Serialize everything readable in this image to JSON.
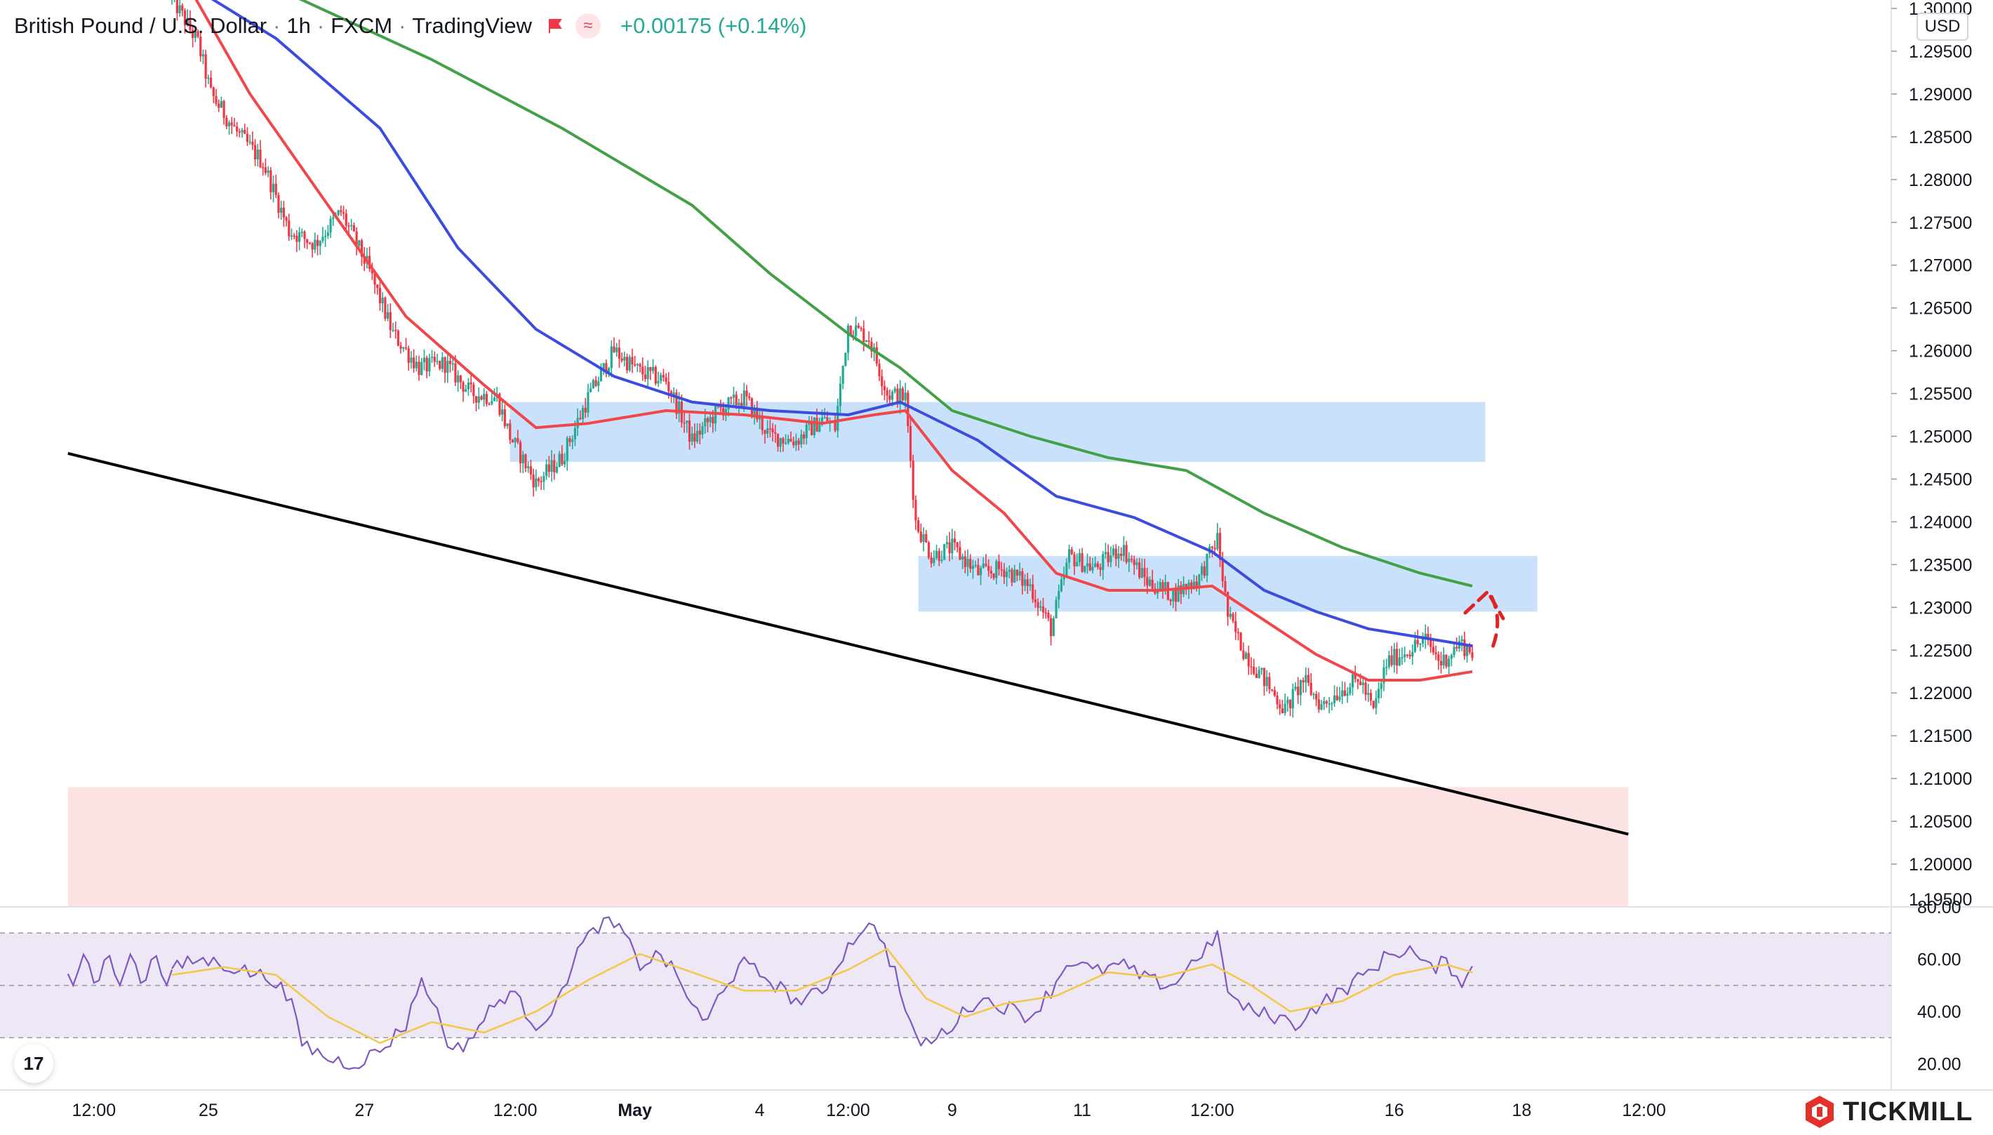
{
  "header": {
    "symbol": "British Pound / U.S. Dollar",
    "interval": "1h",
    "exchange": "FXCM",
    "source": "TradingView",
    "change": "+0.00175 (+0.14%)",
    "currency": "USD"
  },
  "brand": {
    "name": "TICKMILL"
  },
  "tv_logo": "17",
  "colors": {
    "bull": "#22ab94",
    "bear": "#f23645",
    "ema_fast": "#f0474b",
    "ema_mid": "#3c4cde",
    "ema_slow": "#43a047",
    "zone": "#c9e1fb",
    "demand": "#fde2e4",
    "rsi_line": "#7e57c2",
    "rsi_ma": "#f2c94c",
    "trendline": "#000000",
    "arrow": "#e02424"
  },
  "chart_data": [
    {
      "type": "candlestick",
      "title": "British Pound / U.S. Dollar",
      "ylim": [
        1.195,
        1.3
      ],
      "yticks": [
        "1.30000",
        "1.29500",
        "1.29000",
        "1.28500",
        "1.28000",
        "1.27500",
        "1.27000",
        "1.26500",
        "1.26000",
        "1.25500",
        "1.25000",
        "1.24500",
        "1.24000",
        "1.23500",
        "1.23000",
        "1.22500",
        "1.22000",
        "1.21500",
        "1.21000",
        "1.20500",
        "1.20000",
        "1.19500"
      ],
      "xticks": [
        "12:00",
        "25",
        "27",
        "12:00",
        "May",
        "4",
        "12:00",
        "9",
        "11",
        "12:00",
        "16",
        "18",
        "12:00"
      ],
      "xtick_bold": [
        "May"
      ],
      "anchors": [
        {
          "i": 0,
          "p": 1.3012
        },
        {
          "i": 10,
          "p": 1.296
        },
        {
          "i": 15,
          "p": 1.29
        },
        {
          "i": 25,
          "p": 1.2855
        },
        {
          "i": 35,
          "p": 1.282
        },
        {
          "i": 45,
          "p": 1.274
        },
        {
          "i": 55,
          "p": 1.2725
        },
        {
          "i": 65,
          "p": 1.2762
        },
        {
          "i": 75,
          "p": 1.27
        },
        {
          "i": 85,
          "p": 1.262
        },
        {
          "i": 95,
          "p": 1.258
        },
        {
          "i": 105,
          "p": 1.2585
        },
        {
          "i": 115,
          "p": 1.255
        },
        {
          "i": 125,
          "p": 1.2545
        },
        {
          "i": 130,
          "p": 1.25
        },
        {
          "i": 140,
          "p": 1.2445
        },
        {
          "i": 150,
          "p": 1.2475
        },
        {
          "i": 160,
          "p": 1.2545
        },
        {
          "i": 170,
          "p": 1.26
        },
        {
          "i": 180,
          "p": 1.2575
        },
        {
          "i": 190,
          "p": 1.2565
        },
        {
          "i": 200,
          "p": 1.2495
        },
        {
          "i": 210,
          "p": 1.253
        },
        {
          "i": 220,
          "p": 1.2545
        },
        {
          "i": 230,
          "p": 1.25
        },
        {
          "i": 240,
          "p": 1.2495
        },
        {
          "i": 250,
          "p": 1.252
        },
        {
          "i": 255,
          "p": 1.251
        },
        {
          "i": 260,
          "p": 1.263
        },
        {
          "i": 268,
          "p": 1.2615
        },
        {
          "i": 275,
          "p": 1.255
        },
        {
          "i": 282,
          "p": 1.2545
        },
        {
          "i": 286,
          "p": 1.24
        },
        {
          "i": 292,
          "p": 1.236
        },
        {
          "i": 300,
          "p": 1.237
        },
        {
          "i": 310,
          "p": 1.234
        },
        {
          "i": 320,
          "p": 1.2345
        },
        {
          "i": 330,
          "p": 1.2325
        },
        {
          "i": 338,
          "p": 1.2275
        },
        {
          "i": 345,
          "p": 1.236
        },
        {
          "i": 355,
          "p": 1.2345
        },
        {
          "i": 365,
          "p": 1.237
        },
        {
          "i": 375,
          "p": 1.233
        },
        {
          "i": 385,
          "p": 1.2315
        },
        {
          "i": 395,
          "p": 1.2335
        },
        {
          "i": 402,
          "p": 1.238
        },
        {
          "i": 406,
          "p": 1.229
        },
        {
          "i": 412,
          "p": 1.225
        },
        {
          "i": 420,
          "p": 1.2215
        },
        {
          "i": 428,
          "p": 1.218
        },
        {
          "i": 435,
          "p": 1.2215
        },
        {
          "i": 442,
          "p": 1.2185
        },
        {
          "i": 450,
          "p": 1.2205
        },
        {
          "i": 457,
          "p": 1.2215
        },
        {
          "i": 462,
          "p": 1.2178
        },
        {
          "i": 467,
          "p": 1.2235
        },
        {
          "i": 475,
          "p": 1.225
        },
        {
          "i": 482,
          "p": 1.2262
        },
        {
          "i": 488,
          "p": 1.2235
        },
        {
          "i": 495,
          "p": 1.2258
        },
        {
          "i": 500,
          "p": 1.2248
        }
      ],
      "ema_fast": [
        [
          0,
          1.306
        ],
        [
          30,
          1.29
        ],
        [
          60,
          1.277
        ],
        [
          90,
          1.264
        ],
        [
          120,
          1.256
        ],
        [
          140,
          1.251
        ],
        [
          160,
          1.2515
        ],
        [
          190,
          1.253
        ],
        [
          220,
          1.2525
        ],
        [
          250,
          1.2515
        ],
        [
          270,
          1.2525
        ],
        [
          282,
          1.253
        ],
        [
          300,
          1.246
        ],
        [
          320,
          1.241
        ],
        [
          340,
          1.234
        ],
        [
          360,
          1.232
        ],
        [
          380,
          1.232
        ],
        [
          400,
          1.2325
        ],
        [
          420,
          1.2285
        ],
        [
          440,
          1.2245
        ],
        [
          460,
          1.2215
        ],
        [
          480,
          1.2215
        ],
        [
          500,
          1.2225
        ]
      ],
      "ema_mid": [
        [
          0,
          1.304
        ],
        [
          40,
          1.2965
        ],
        [
          80,
          1.286
        ],
        [
          110,
          1.272
        ],
        [
          140,
          1.2625
        ],
        [
          170,
          1.257
        ],
        [
          200,
          1.254
        ],
        [
          230,
          1.253
        ],
        [
          260,
          1.2525
        ],
        [
          280,
          1.254
        ],
        [
          290,
          1.2525
        ],
        [
          310,
          1.2495
        ],
        [
          340,
          1.243
        ],
        [
          370,
          1.2405
        ],
        [
          400,
          1.2365
        ],
        [
          420,
          1.232
        ],
        [
          440,
          1.2295
        ],
        [
          460,
          1.2275
        ],
        [
          480,
          1.2265
        ],
        [
          500,
          1.2255
        ]
      ],
      "ema_slow": [
        [
          0,
          1.3075
        ],
        [
          50,
          1.301
        ],
        [
          100,
          1.294
        ],
        [
          150,
          1.286
        ],
        [
          200,
          1.277
        ],
        [
          230,
          1.269
        ],
        [
          260,
          1.262
        ],
        [
          280,
          1.258
        ],
        [
          300,
          1.253
        ],
        [
          330,
          1.25
        ],
        [
          360,
          1.2475
        ],
        [
          390,
          1.246
        ],
        [
          420,
          1.241
        ],
        [
          450,
          1.237
        ],
        [
          480,
          1.234
        ],
        [
          500,
          1.2325
        ]
      ],
      "zones": [
        {
          "i0": 130,
          "i1": 505,
          "top": 1.254,
          "bottom": 1.247,
          "kind": "supply"
        },
        {
          "i0": 287,
          "i1": 525,
          "top": 1.236,
          "bottom": 1.2295,
          "kind": "supply"
        },
        {
          "i0": -40,
          "i1": 560,
          "top": 1.209,
          "bottom": 1.195,
          "kind": "demand"
        }
      ],
      "trendline": [
        [
          -40,
          1.248
        ],
        [
          560,
          1.2035
        ]
      ]
    },
    {
      "type": "line",
      "title": "RSI",
      "ylim": [
        10,
        80
      ],
      "yticks": [
        "80.00",
        "60.00",
        "40.00",
        "20.00"
      ],
      "levels": [
        70,
        50,
        30
      ],
      "series": [
        {
          "role": "rsi",
          "anchors": [
            [
              0,
              56
            ],
            [
              10,
              60
            ],
            [
              20,
              58
            ],
            [
              30,
              55
            ],
            [
              40,
              52
            ],
            [
              46,
              42
            ],
            [
              50,
              28
            ],
            [
              60,
              22
            ],
            [
              70,
              20
            ],
            [
              80,
              25
            ],
            [
              90,
              35
            ],
            [
              95,
              52
            ],
            [
              100,
              45
            ],
            [
              108,
              24
            ],
            [
              115,
              30
            ],
            [
              122,
              40
            ],
            [
              130,
              48
            ],
            [
              140,
              35
            ],
            [
              148,
              42
            ],
            [
              155,
              62
            ],
            [
              165,
              74
            ],
            [
              172,
              72
            ],
            [
              180,
              58
            ],
            [
              188,
              62
            ],
            [
              195,
              52
            ],
            [
              205,
              34
            ],
            [
              212,
              50
            ],
            [
              220,
              58
            ],
            [
              230,
              52
            ],
            [
              240,
              44
            ],
            [
              250,
              47
            ],
            [
              258,
              62
            ],
            [
              266,
              73
            ],
            [
              272,
              70
            ],
            [
              278,
              55
            ],
            [
              285,
              30
            ],
            [
              292,
              28
            ],
            [
              300,
              35
            ],
            [
              310,
              45
            ],
            [
              320,
              42
            ],
            [
              330,
              38
            ],
            [
              338,
              48
            ],
            [
              345,
              60
            ],
            [
              355,
              55
            ],
            [
              365,
              58
            ],
            [
              375,
              52
            ],
            [
              385,
              50
            ],
            [
              395,
              62
            ],
            [
              402,
              68
            ],
            [
              407,
              45
            ],
            [
              415,
              40
            ],
            [
              425,
              38
            ],
            [
              432,
              35
            ],
            [
              440,
              42
            ],
            [
              450,
              48
            ],
            [
              460,
              55
            ],
            [
              468,
              62
            ],
            [
              476,
              64
            ],
            [
              483,
              56
            ],
            [
              490,
              59
            ],
            [
              496,
              52
            ],
            [
              500,
              56
            ]
          ]
        },
        {
          "role": "rsi_ma",
          "anchors": [
            [
              0,
              54
            ],
            [
              20,
              57
            ],
            [
              40,
              54
            ],
            [
              60,
              38
            ],
            [
              80,
              28
            ],
            [
              100,
              36
            ],
            [
              120,
              32
            ],
            [
              140,
              40
            ],
            [
              160,
              52
            ],
            [
              180,
              62
            ],
            [
              200,
              55
            ],
            [
              220,
              48
            ],
            [
              240,
              48
            ],
            [
              260,
              56
            ],
            [
              275,
              64
            ],
            [
              290,
              45
            ],
            [
              305,
              38
            ],
            [
              320,
              43
            ],
            [
              340,
              46
            ],
            [
              360,
              55
            ],
            [
              380,
              53
            ],
            [
              400,
              58
            ],
            [
              415,
              50
            ],
            [
              430,
              40
            ],
            [
              450,
              44
            ],
            [
              470,
              54
            ],
            [
              490,
              58
            ],
            [
              500,
              55
            ]
          ]
        }
      ]
    }
  ]
}
